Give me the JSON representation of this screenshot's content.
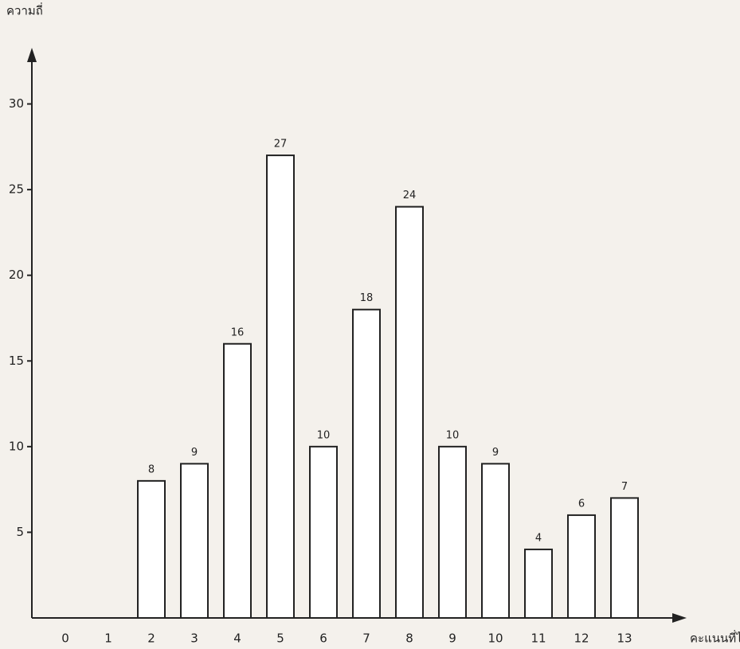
{
  "chart_data": {
    "type": "bar",
    "y_label": "ความถี่",
    "x_label": "คะแนนที่ได้",
    "categories": [
      "0",
      "1",
      "2",
      "3",
      "4",
      "5",
      "6",
      "7",
      "8",
      "9",
      "10",
      "11",
      "12",
      "13"
    ],
    "values": [
      null,
      null,
      8,
      9,
      16,
      27,
      10,
      18,
      24,
      10,
      9,
      4,
      6,
      7
    ],
    "color": "#ffffff",
    "ylim": [
      0,
      33
    ],
    "yticks": [
      5,
      10,
      15,
      20,
      25,
      30
    ],
    "grid": false
  }
}
